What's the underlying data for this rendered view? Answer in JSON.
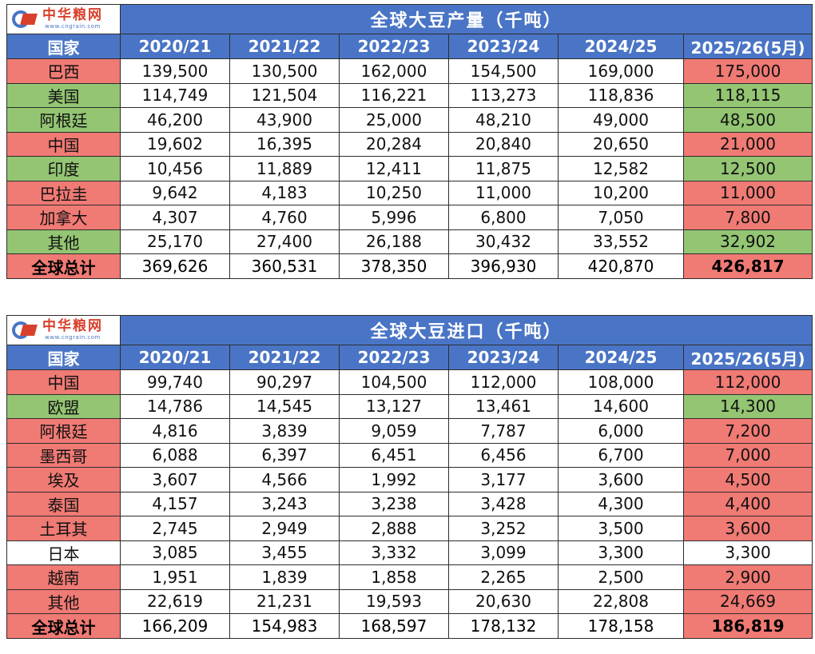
{
  "logo": {
    "name": "中华粮网",
    "url": "www.cngrain.com"
  },
  "colors": {
    "header_blue": "#4a75c6",
    "red": "#f07a74",
    "green": "#93c572"
  },
  "chart_data": [
    {
      "type": "table",
      "title": "全球大豆产量（千吨）",
      "columns": [
        "国家",
        "2020/21",
        "2021/22",
        "2022/23",
        "2023/24",
        "2024/25",
        "2025/26(5月)"
      ],
      "rows": [
        {
          "country": "巴西",
          "values": [
            "139,500",
            "130,500",
            "162,000",
            "154,500",
            "169,000",
            "175,000"
          ],
          "highlight": "red"
        },
        {
          "country": "美国",
          "values": [
            "114,749",
            "121,504",
            "116,221",
            "113,273",
            "118,836",
            "118,115"
          ],
          "highlight": "green"
        },
        {
          "country": "阿根廷",
          "values": [
            "46,200",
            "43,900",
            "25,000",
            "48,210",
            "49,000",
            "48,500"
          ],
          "highlight": "green"
        },
        {
          "country": "中国",
          "values": [
            "19,602",
            "16,395",
            "20,284",
            "20,840",
            "20,650",
            "21,000"
          ],
          "highlight": "red"
        },
        {
          "country": "印度",
          "values": [
            "10,456",
            "11,889",
            "12,411",
            "11,875",
            "12,582",
            "12,500"
          ],
          "highlight": "green"
        },
        {
          "country": "巴拉圭",
          "values": [
            "9,642",
            "4,183",
            "10,250",
            "11,000",
            "10,200",
            "11,000"
          ],
          "highlight": "red"
        },
        {
          "country": "加拿大",
          "values": [
            "4,307",
            "4,760",
            "5,996",
            "6,800",
            "7,050",
            "7,800"
          ],
          "highlight": "red"
        },
        {
          "country": "其他",
          "values": [
            "25,170",
            "27,400",
            "26,188",
            "30,432",
            "33,552",
            "32,902"
          ],
          "highlight": "green"
        }
      ],
      "total": {
        "label": "全球总计",
        "values": [
          "369,626",
          "360,531",
          "378,350",
          "396,930",
          "420,870",
          "426,817"
        ],
        "highlight": "red"
      }
    },
    {
      "type": "table",
      "title": "全球大豆进口（千吨）",
      "columns": [
        "国家",
        "2020/21",
        "2021/22",
        "2022/23",
        "2023/24",
        "2024/25",
        "2025/26(5月)"
      ],
      "rows": [
        {
          "country": "中国",
          "values": [
            "99,740",
            "90,297",
            "104,500",
            "112,000",
            "108,000",
            "112,000"
          ],
          "highlight": "red"
        },
        {
          "country": "欧盟",
          "values": [
            "14,786",
            "14,545",
            "13,127",
            "13,461",
            "14,600",
            "14,300"
          ],
          "highlight": "green"
        },
        {
          "country": "阿根廷",
          "values": [
            "4,816",
            "3,839",
            "9,059",
            "7,787",
            "6,000",
            "7,200"
          ],
          "highlight": "red"
        },
        {
          "country": "墨西哥",
          "values": [
            "6,088",
            "6,397",
            "6,451",
            "6,456",
            "6,700",
            "7,000"
          ],
          "highlight": "red"
        },
        {
          "country": "埃及",
          "values": [
            "3,607",
            "4,566",
            "1,992",
            "3,177",
            "3,600",
            "4,500"
          ],
          "highlight": "red"
        },
        {
          "country": "泰国",
          "values": [
            "4,157",
            "3,243",
            "3,238",
            "3,428",
            "4,300",
            "4,400"
          ],
          "highlight": "red"
        },
        {
          "country": "土耳其",
          "values": [
            "2,745",
            "2,949",
            "2,888",
            "3,252",
            "3,500",
            "3,600"
          ],
          "highlight": "red"
        },
        {
          "country": "日本",
          "values": [
            "3,085",
            "3,455",
            "3,332",
            "3,099",
            "3,300",
            "3,300"
          ],
          "highlight": "white"
        },
        {
          "country": "越南",
          "values": [
            "1,951",
            "1,839",
            "1,858",
            "2,265",
            "2,500",
            "2,900"
          ],
          "highlight": "red"
        },
        {
          "country": "其他",
          "values": [
            "22,619",
            "21,231",
            "19,593",
            "20,630",
            "22,808",
            "24,669"
          ],
          "highlight": "red"
        }
      ],
      "total": {
        "label": "全球总计",
        "values": [
          "166,209",
          "154,983",
          "168,597",
          "178,132",
          "178,158",
          "186,819"
        ],
        "highlight": "red"
      }
    }
  ]
}
